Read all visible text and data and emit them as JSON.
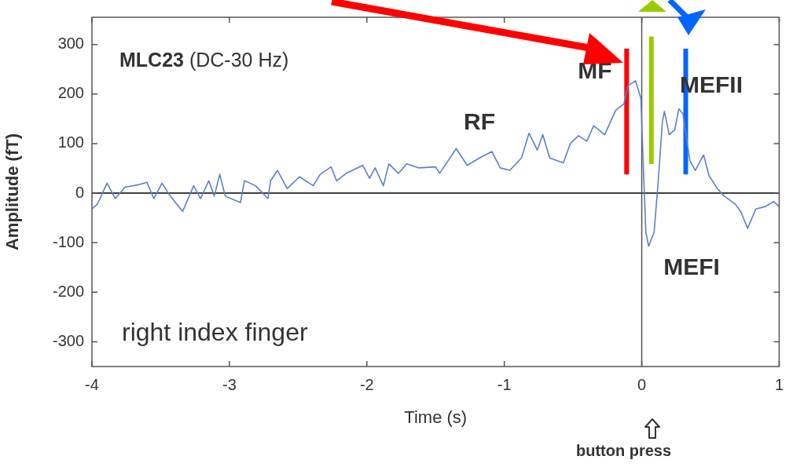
{
  "chart_data": {
    "type": "line",
    "xlabel": "Time (s)",
    "ylabel": "Amplitude (fT)",
    "xlim": [
      -4,
      1
    ],
    "xticks": [
      -4,
      -3,
      -2,
      -1,
      0,
      1
    ],
    "ylim": [
      -350,
      355
    ],
    "yticks": [
      -300,
      -200,
      -100,
      0,
      100,
      200,
      300
    ],
    "grid": false,
    "legend": false,
    "marker": "none",
    "line_style": "solid",
    "series": [
      {
        "color": "#5b80c8",
        "x": [
          -4.0,
          -3.96,
          -3.89,
          -3.83,
          -3.76,
          -3.66,
          -3.6,
          -3.55,
          -3.49,
          -3.43,
          -3.34,
          -3.26,
          -3.21,
          -3.15,
          -3.11,
          -3.07,
          -3.03,
          -2.92,
          -2.89,
          -2.81,
          -2.72,
          -2.7,
          -2.65,
          -2.58,
          -2.49,
          -2.39,
          -2.34,
          -2.26,
          -2.22,
          -2.15,
          -2.03,
          -1.98,
          -1.94,
          -1.88,
          -1.84,
          -1.77,
          -1.71,
          -1.62,
          -1.5,
          -1.47,
          -1.35,
          -1.27,
          -1.18,
          -1.09,
          -1.03,
          -0.96,
          -0.875,
          -0.82,
          -0.76,
          -0.72,
          -0.67,
          -0.57,
          -0.52,
          -0.46,
          -0.4,
          -0.35,
          -0.27,
          -0.19,
          -0.13,
          -0.1,
          -0.045,
          -0.006,
          0.01,
          0.03,
          0.05,
          0.09,
          0.12,
          0.15,
          0.165,
          0.2,
          0.24,
          0.27,
          0.3,
          0.35,
          0.39,
          0.45,
          0.49,
          0.55,
          0.6,
          0.68,
          0.72,
          0.77,
          0.83,
          0.9,
          0.96,
          1.0
        ],
        "values": [
          -32,
          -22,
          20,
          -11,
          12,
          17,
          22,
          -11,
          20,
          -6,
          -37,
          15,
          -11,
          25,
          -6,
          38,
          -6,
          -19,
          25,
          15,
          -11,
          25,
          46,
          9,
          33,
          15,
          38,
          53,
          25,
          40,
          56,
          30,
          51,
          15,
          59,
          40,
          59,
          51,
          53,
          40,
          90,
          56,
          71,
          84,
          51,
          46,
          71,
          121,
          87,
          118,
          71,
          61,
          100,
          116,
          105,
          136,
          118,
          167,
          180,
          217,
          227,
          191,
          66,
          -79,
          -107,
          -79,
          25,
          144,
          165,
          118,
          128,
          170,
          160,
          66,
          46,
          77,
          35,
          9,
          -6,
          -22,
          -37,
          -71,
          -32,
          -27,
          -17,
          -27
        ]
      }
    ],
    "ref_lines": [
      {
        "axis": "y",
        "value": 0,
        "color": "#000000"
      },
      {
        "axis": "x",
        "value": 0,
        "color": "#555555"
      },
      {
        "axis": "x",
        "value": -0.11,
        "color": "#ff0000"
      },
      {
        "axis": "x",
        "value": 0.07,
        "color": "#99cc00"
      },
      {
        "axis": "x",
        "value": 0.32,
        "color": "#0066ff"
      }
    ],
    "annotations": [
      "MLC23 (DC-30 Hz)",
      "right index finger",
      "button press",
      "RF",
      "MF",
      "MEFII",
      "MEFI"
    ]
  }
}
